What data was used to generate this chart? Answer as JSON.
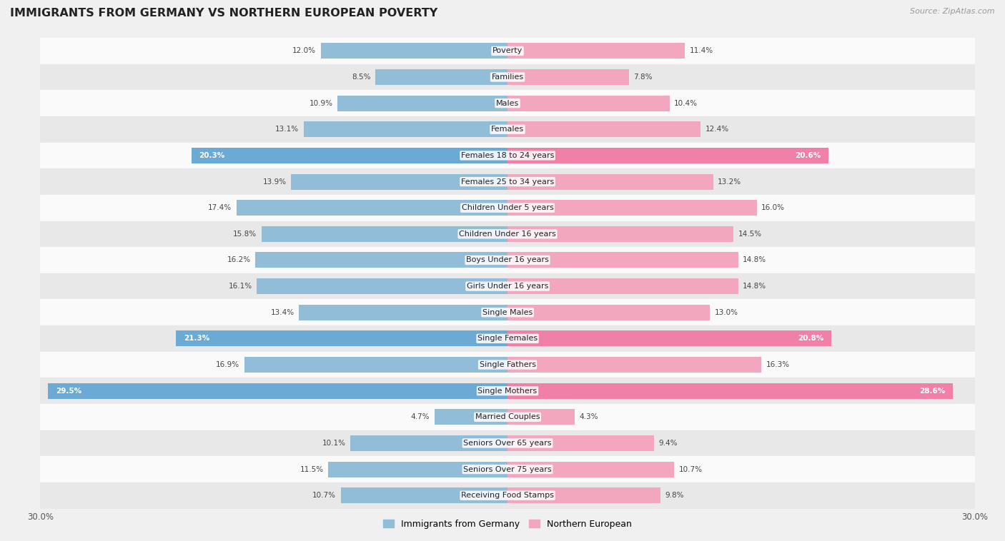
{
  "title": "IMMIGRANTS FROM GERMANY VS NORTHERN EUROPEAN POVERTY",
  "source": "Source: ZipAtlas.com",
  "categories": [
    "Poverty",
    "Families",
    "Males",
    "Females",
    "Females 18 to 24 years",
    "Females 25 to 34 years",
    "Children Under 5 years",
    "Children Under 16 years",
    "Boys Under 16 years",
    "Girls Under 16 years",
    "Single Males",
    "Single Females",
    "Single Fathers",
    "Single Mothers",
    "Married Couples",
    "Seniors Over 65 years",
    "Seniors Over 75 years",
    "Receiving Food Stamps"
  ],
  "germany_values": [
    12.0,
    8.5,
    10.9,
    13.1,
    20.3,
    13.9,
    17.4,
    15.8,
    16.2,
    16.1,
    13.4,
    21.3,
    16.9,
    29.5,
    4.7,
    10.1,
    11.5,
    10.7
  ],
  "northern_values": [
    11.4,
    7.8,
    10.4,
    12.4,
    20.6,
    13.2,
    16.0,
    14.5,
    14.8,
    14.8,
    13.0,
    20.8,
    16.3,
    28.6,
    4.3,
    9.4,
    10.7,
    9.8
  ],
  "germany_color": "#92bdd8",
  "northern_color": "#f2a7bf",
  "germany_highlight_color": "#6aaad4",
  "northern_highlight_color": "#f080a8",
  "highlight_rows": [
    4,
    11,
    13
  ],
  "xlim": 30.0,
  "background_color": "#f0f0f0",
  "row_bg_light": "#fafafa",
  "row_bg_dark": "#e8e8e8",
  "legend_germany": "Immigrants from Germany",
  "legend_northern": "Northern European",
  "bar_height": 0.6,
  "title_fontsize": 11.5,
  "label_fontsize": 8.0,
  "value_fontsize": 7.5,
  "source_fontsize": 8.0
}
